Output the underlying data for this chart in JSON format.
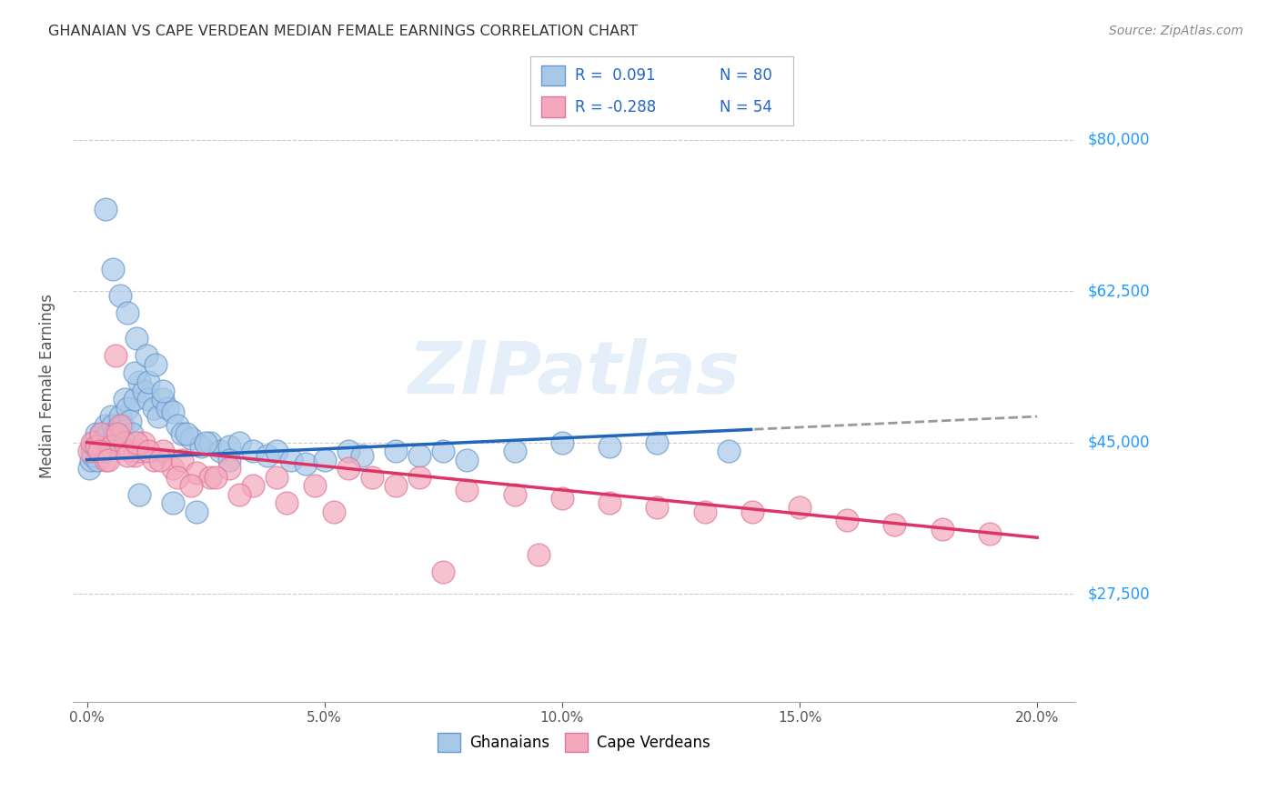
{
  "title": "GHANAIAN VS CAPE VERDEAN MEDIAN FEMALE EARNINGS CORRELATION CHART",
  "source": "Source: ZipAtlas.com",
  "ylabel_label": "Median Female Earnings",
  "ghanaian_color": "#a8c8e8",
  "cape_verdean_color": "#f4a8bc",
  "ghanaian_edge": "#6699cc",
  "cape_verdean_edge": "#dd7799",
  "trend_blue": "#2266bb",
  "trend_pink": "#dd3366",
  "trend_dash": "#999999",
  "watermark": "ZIPatlas",
  "ghanaian_x": [
    0.05,
    0.08,
    0.1,
    0.12,
    0.15,
    0.18,
    0.2,
    0.22,
    0.25,
    0.28,
    0.3,
    0.32,
    0.35,
    0.38,
    0.4,
    0.42,
    0.45,
    0.48,
    0.5,
    0.52,
    0.55,
    0.58,
    0.6,
    0.65,
    0.7,
    0.75,
    0.8,
    0.85,
    0.9,
    0.95,
    1.0,
    1.1,
    1.2,
    1.3,
    1.4,
    1.5,
    1.6,
    1.7,
    1.8,
    1.9,
    2.0,
    2.2,
    2.4,
    2.6,
    2.8,
    3.0,
    3.2,
    3.5,
    3.8,
    4.0,
    4.3,
    4.6,
    5.0,
    5.5,
    5.8,
    6.5,
    7.0,
    7.5,
    8.0,
    9.0,
    10.0,
    11.0,
    12.0,
    13.5,
    1.0,
    1.3,
    1.6,
    2.1,
    2.5,
    3.0,
    0.4,
    0.55,
    0.7,
    0.85,
    1.05,
    1.25,
    1.45,
    1.1,
    1.8,
    2.3
  ],
  "ghanaian_y": [
    42000,
    43000,
    44000,
    43500,
    45000,
    44500,
    46000,
    43000,
    44000,
    45000,
    46000,
    44500,
    45500,
    44000,
    47000,
    45000,
    46000,
    44500,
    48000,
    45000,
    47000,
    46000,
    45000,
    46500,
    48000,
    47000,
    50000,
    49000,
    47500,
    46000,
    50000,
    52000,
    51000,
    50000,
    49000,
    48000,
    50000,
    49000,
    48500,
    47000,
    46000,
    45500,
    44500,
    45000,
    44000,
    44500,
    45000,
    44000,
    43500,
    44000,
    43000,
    42500,
    43000,
    44000,
    43500,
    44000,
    43500,
    44000,
    43000,
    44000,
    45000,
    44500,
    45000,
    44000,
    53000,
    52000,
    51000,
    46000,
    45000,
    43000,
    72000,
    65000,
    62000,
    60000,
    57000,
    55000,
    54000,
    39000,
    38000,
    37000
  ],
  "cape_verdean_x": [
    0.05,
    0.1,
    0.2,
    0.3,
    0.4,
    0.5,
    0.6,
    0.7,
    0.8,
    0.9,
    1.0,
    1.1,
    1.2,
    1.4,
    1.6,
    1.8,
    2.0,
    2.3,
    2.6,
    3.0,
    3.5,
    4.0,
    4.8,
    5.5,
    6.0,
    6.5,
    7.0,
    8.0,
    9.0,
    10.0,
    11.0,
    12.0,
    13.0,
    14.0,
    15.0,
    16.0,
    17.0,
    18.0,
    19.0,
    0.25,
    0.45,
    0.65,
    0.85,
    1.05,
    1.3,
    1.55,
    1.9,
    2.2,
    2.7,
    3.2,
    4.2,
    5.2,
    7.5,
    9.5
  ],
  "cape_verdean_y": [
    44000,
    45000,
    44500,
    46000,
    43000,
    44500,
    55000,
    47000,
    45000,
    44000,
    43500,
    44000,
    45000,
    43000,
    44000,
    42000,
    43000,
    41500,
    41000,
    42000,
    40000,
    41000,
    40000,
    42000,
    41000,
    40000,
    41000,
    39500,
    39000,
    38500,
    38000,
    37500,
    37000,
    37000,
    37500,
    36000,
    35500,
    35000,
    34500,
    44000,
    43000,
    46000,
    43500,
    45000,
    44000,
    43000,
    41000,
    40000,
    41000,
    39000,
    38000,
    37000,
    30000,
    32000
  ]
}
